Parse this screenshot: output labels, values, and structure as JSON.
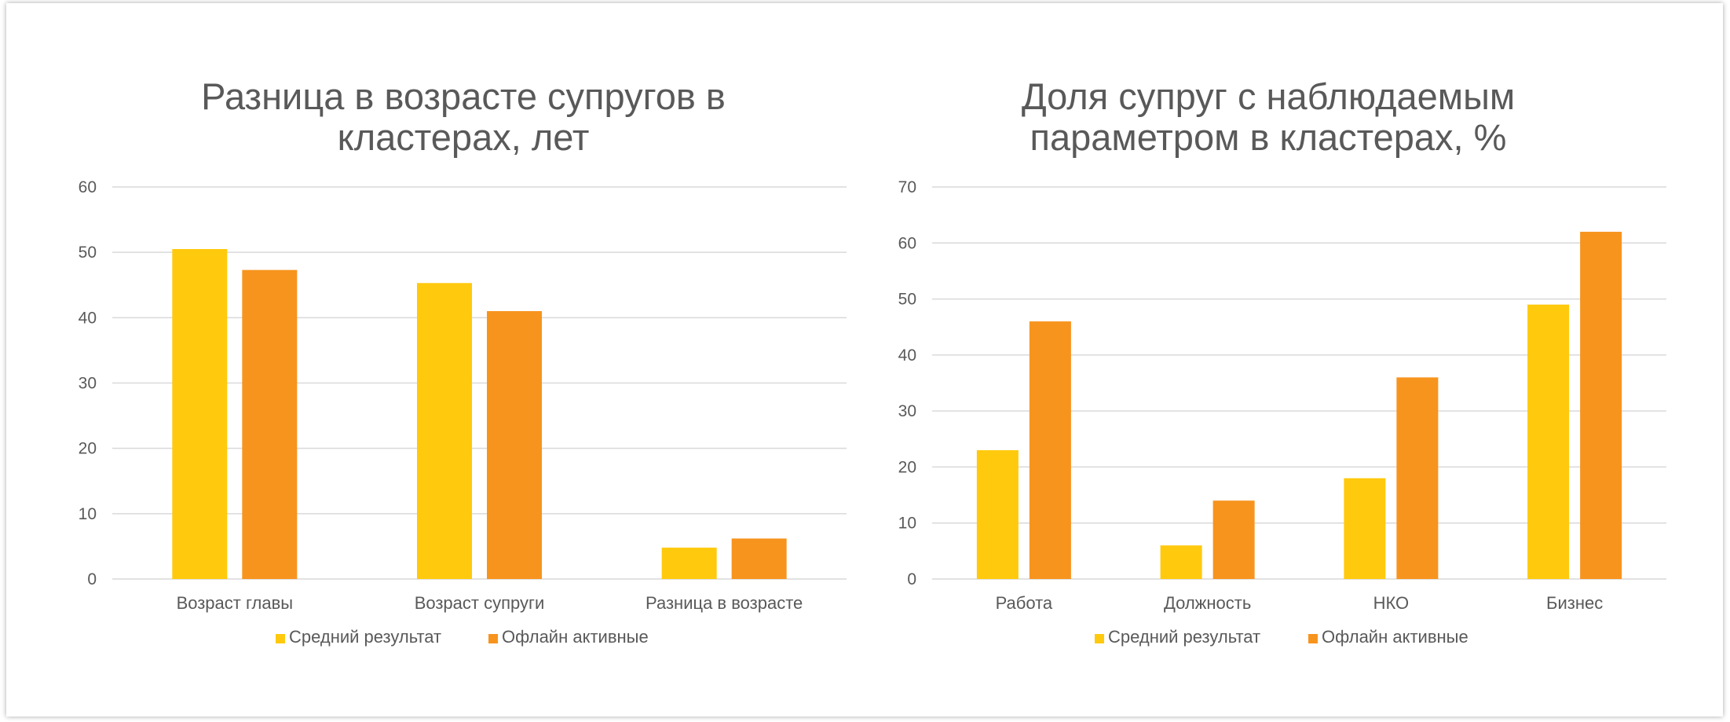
{
  "colors": {
    "series1": "#FFC90D",
    "series2": "#F7941E",
    "grid": "#D9D9D9",
    "text": "#595959"
  },
  "chart_data": [
    {
      "type": "bar",
      "title": "Разница в возрасте супругов в\nкластерах, лет",
      "categories": [
        "Возраст главы",
        "Возраст супруги",
        "Разница в возрасте"
      ],
      "series": [
        {
          "name": "Средний результат",
          "values": [
            50.5,
            45.3,
            4.8
          ]
        },
        {
          "name": "Офлайн активные",
          "values": [
            47.3,
            41.0,
            6.2
          ]
        }
      ],
      "ylim": [
        0,
        60
      ],
      "yticks": [
        0,
        10,
        20,
        30,
        40,
        50,
        60
      ],
      "grid": true,
      "legend": "bottom"
    },
    {
      "type": "bar",
      "title": "Доля супруг с наблюдаемым\nпараметром в кластерах, %",
      "categories": [
        "Работа",
        "Должность",
        "НКО",
        "Бизнес"
      ],
      "series": [
        {
          "name": "Средний результат",
          "values": [
            23,
            6,
            18,
            49
          ]
        },
        {
          "name": "Офлайн активные",
          "values": [
            46,
            14,
            36,
            62
          ]
        }
      ],
      "ylim": [
        0,
        70
      ],
      "yticks": [
        0,
        10,
        20,
        30,
        40,
        50,
        60,
        70
      ],
      "grid": true,
      "legend": "bottom"
    }
  ]
}
